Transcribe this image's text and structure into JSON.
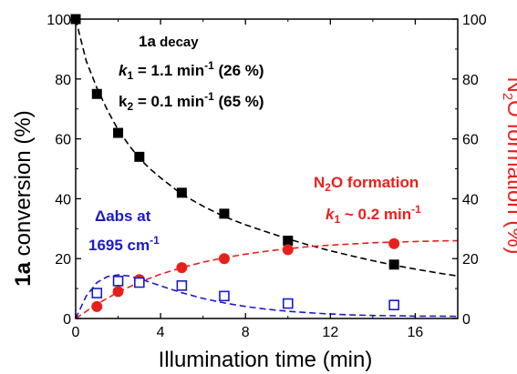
{
  "chart_data": {
    "type": "scatter",
    "xlabel": "Illumination  time (min)",
    "ylabel_left": {
      "bold": "1a",
      "rest": " conversion (%)"
    },
    "ylabel_right": {
      "pre": "N",
      "sub": "2",
      "post": "O formation (%)"
    },
    "xlim": [
      0,
      18
    ],
    "ylim_left": [
      0,
      100
    ],
    "ylim_right": [
      0,
      100
    ],
    "xticks": [
      0,
      4,
      8,
      12,
      16
    ],
    "xtick_labels": [
      "0",
      "4",
      "8",
      "12",
      "16"
    ],
    "yticks": [
      0,
      20,
      40,
      60,
      80,
      100
    ],
    "ytick_labels": [
      "0",
      "20",
      "40",
      "60",
      "80",
      "100"
    ],
    "annotations": {
      "decay_title": {
        "bold": "1a",
        "rest": " decay"
      },
      "k1_decay": {
        "k": "k",
        "sub": "1",
        "text": " = 1.1 min",
        "sup": "-1",
        "tail": " (26 %)"
      },
      "k2_decay": {
        "k": "k",
        "sub": "2",
        "text": " = 0.1 min",
        "sup": "-1",
        "tail": " (65 %)"
      },
      "n2o_title": {
        "pre": "N",
        "sub": "2",
        "post": "O formation"
      },
      "n2o_k": {
        "k": "k",
        "sub": "1",
        "text": " ~ 0.2 min",
        "sup": "-1"
      },
      "abs_line1": "Δabs at",
      "abs_line2": {
        "text": "1695 cm",
        "sup": "-1"
      }
    },
    "colors": {
      "decay": "#000000",
      "n2o": "#e8201c",
      "abs": "#1a1acc"
    },
    "series": [
      {
        "name": "1a decay",
        "marker": "filled-square",
        "axis": "left",
        "x": [
          0,
          1,
          2,
          3,
          5,
          7,
          10,
          15
        ],
        "y": [
          100,
          75,
          62,
          54,
          42,
          35,
          26,
          18
        ],
        "fit": {
          "x": [
            0,
            0.5,
            1,
            1.5,
            2,
            2.5,
            3,
            3.5,
            4,
            5,
            6,
            7,
            8,
            9,
            10,
            11,
            12,
            13,
            14,
            15,
            16,
            17,
            18
          ],
          "y": [
            100,
            86,
            77,
            69.5,
            63,
            58,
            53.5,
            50,
            47,
            41.5,
            37.5,
            34,
            31.3,
            28.9,
            26.6,
            24.5,
            22.6,
            20.9,
            19.3,
            17.8,
            16.5,
            15.3,
            14.2
          ]
        }
      },
      {
        "name": "N2O formation",
        "marker": "filled-circle",
        "axis": "right",
        "x": [
          1,
          2,
          3,
          5,
          7,
          10,
          15
        ],
        "y": [
          4,
          9,
          13,
          17,
          20,
          23,
          25
        ],
        "fit": {
          "x": [
            0,
            1,
            2,
            3,
            4,
            5,
            6,
            7,
            8,
            9,
            10,
            11,
            12,
            13,
            14,
            15,
            16,
            17,
            18
          ],
          "y": [
            0,
            4.8,
            8.8,
            12.1,
            14.8,
            17.0,
            18.8,
            20.3,
            21.5,
            22.5,
            23.3,
            24.0,
            24.5,
            24.9,
            25.3,
            25.5,
            25.7,
            25.9,
            26.0
          ]
        }
      },
      {
        "name": "abs 1695",
        "marker": "open-square",
        "axis": "left",
        "x": [
          1,
          2,
          3,
          5,
          7,
          10,
          15
        ],
        "y": [
          8.5,
          12.5,
          12,
          11,
          7.5,
          5,
          4.5
        ],
        "fit": {
          "x": [
            0,
            0.5,
            1,
            1.5,
            2,
            2.5,
            3,
            3.5,
            4,
            5,
            6,
            7,
            8,
            9,
            10,
            11,
            12,
            13,
            14,
            15,
            16,
            17,
            18
          ],
          "y": [
            0,
            7.5,
            12.0,
            14.0,
            14.6,
            14.2,
            13.3,
            12.1,
            10.9,
            8.6,
            6.7,
            5.2,
            4.0,
            3.1,
            2.4,
            1.9,
            1.5,
            1.2,
            1.0,
            0.9,
            0.8,
            0.8,
            0.7
          ]
        }
      }
    ]
  }
}
